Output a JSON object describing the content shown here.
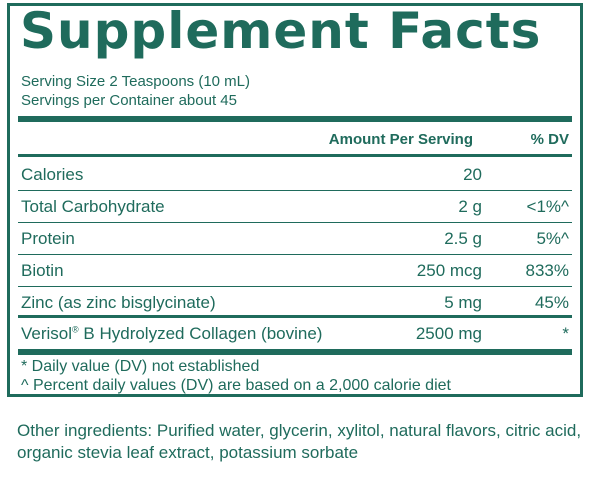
{
  "title": "Supplement Facts",
  "serving_size": "Serving Size 2 Teaspoons (10 mL)",
  "servings_per_container": "Servings per Container about 45",
  "header": {
    "amount": "Amount Per Serving",
    "dv": "% DV"
  },
  "rows": [
    {
      "name": "Calories",
      "amount": "20",
      "dv": ""
    },
    {
      "name": "Total Carbohydrate",
      "amount": "2 g",
      "dv": "<1%^"
    },
    {
      "name": "Protein",
      "amount": "2.5 g",
      "dv": "5%^"
    },
    {
      "name": "Biotin",
      "amount": "250 mcg",
      "dv": "833%"
    },
    {
      "name": "Zinc (as zinc bisglycinate)",
      "amount": "5 mg",
      "dv": "45%"
    }
  ],
  "collagen": {
    "name_prefix": "Verisol",
    "reg_mark": "®",
    "name_suffix": " B Hydrolyzed Collagen (bovine)",
    "amount": "2500 mg",
    "dv": "*"
  },
  "notes": [
    "* Daily value (DV) not established",
    "^ Percent daily values (DV) are based on a 2,000 calorie diet"
  ],
  "other_ingredients": [
    "Other ingredients: Purified water, glycerin, xylitol, natural flavors, citric acid,",
    "organic stevia leaf extract, potassium sorbate"
  ],
  "colors": {
    "ink": "#1f6b5c",
    "background": "#ffffff"
  }
}
